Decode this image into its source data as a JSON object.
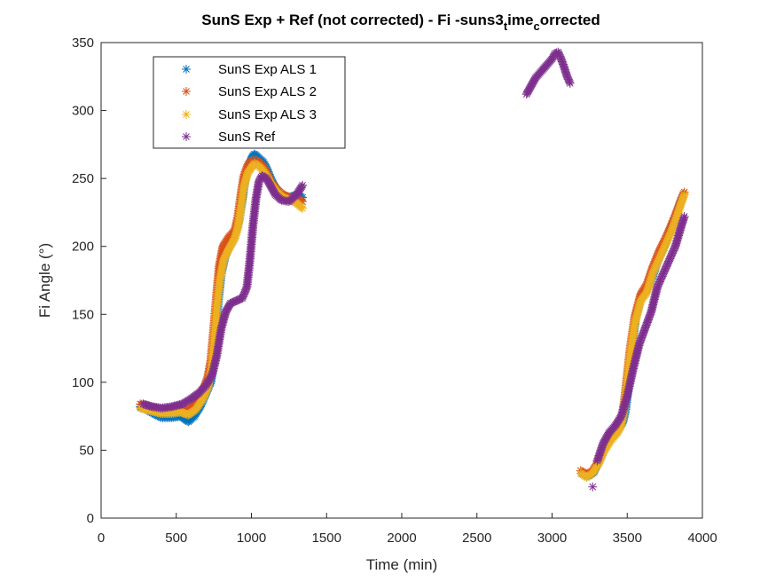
{
  "chart_data": {
    "type": "scatter",
    "title_parts": {
      "main": "SunS Exp + Ref  (not corrected) - Fi -suns3",
      "sub1": "t",
      "mid": "ime",
      "sub2": "c",
      "end": "orrected"
    },
    "xlabel": "Time (min)",
    "ylabel": "Fi Angle (°)",
    "xlim": [
      0,
      4000
    ],
    "ylim": [
      0,
      350
    ],
    "xticks": [
      0,
      500,
      1000,
      1500,
      2000,
      2500,
      3000,
      3500,
      4000
    ],
    "yticks": [
      0,
      50,
      100,
      150,
      200,
      250,
      300,
      350
    ],
    "xtick_labels": [
      "0",
      "500",
      "1000",
      "1500",
      "2000",
      "2500",
      "3000",
      "3500",
      "4000"
    ],
    "ytick_labels": [
      "0",
      "50",
      "100",
      "150",
      "200",
      "250",
      "300",
      "350"
    ],
    "grid": false,
    "legend_position": "top-left",
    "marker": "asterisk",
    "series": [
      {
        "name": "SunS Exp ALS 1",
        "color": "#0072BD",
        "segments": [
          [
            [
              260,
              82
            ],
            [
              330,
              78
            ],
            [
              400,
              74
            ],
            [
              470,
              74
            ],
            [
              530,
              75
            ],
            [
              580,
              71
            ],
            [
              620,
              75
            ],
            [
              660,
              82
            ],
            [
              700,
              92
            ],
            [
              730,
              100
            ],
            [
              745,
              110
            ],
            [
              760,
              130
            ],
            [
              780,
              160
            ],
            [
              800,
              180
            ],
            [
              830,
              195
            ],
            [
              870,
              205
            ],
            [
              900,
              212
            ],
            [
              920,
              220
            ],
            [
              940,
              235
            ],
            [
              960,
              250
            ],
            [
              980,
              258
            ],
            [
              1000,
              265
            ],
            [
              1020,
              268
            ],
            [
              1040,
              266
            ],
            [
              1060,
              264
            ],
            [
              1080,
              262
            ],
            [
              1100,
              258
            ],
            [
              1130,
              250
            ],
            [
              1160,
              243
            ],
            [
              1200,
              238
            ],
            [
              1250,
              236
            ],
            [
              1300,
              238
            ],
            [
              1340,
              236
            ]
          ],
          [
            [
              3200,
              33
            ],
            [
              3240,
              31
            ],
            [
              3280,
              34
            ],
            [
              3320,
              45
            ],
            [
              3360,
              55
            ],
            [
              3400,
              62
            ],
            [
              3440,
              66
            ],
            [
              3470,
              70
            ],
            [
              3490,
              80
            ],
            [
              3510,
              100
            ],
            [
              3530,
              125
            ],
            [
              3560,
              150
            ],
            [
              3600,
              165
            ],
            [
              3640,
              170
            ],
            [
              3670,
              178
            ],
            [
              3700,
              188
            ],
            [
              3740,
              198
            ],
            [
              3780,
              210
            ],
            [
              3820,
              222
            ],
            [
              3850,
              232
            ],
            [
              3870,
              238
            ]
          ]
        ]
      },
      {
        "name": "SunS Exp ALS 2",
        "color": "#D95319",
        "segments": [
          [
            [
              260,
              84
            ],
            [
              330,
              82
            ],
            [
              400,
              80
            ],
            [
              470,
              80
            ],
            [
              530,
              81
            ],
            [
              580,
              80
            ],
            [
              630,
              86
            ],
            [
              680,
              95
            ],
            [
              710,
              104
            ],
            [
              730,
              116
            ],
            [
              750,
              140
            ],
            [
              765,
              160
            ],
            [
              785,
              185
            ],
            [
              810,
              200
            ],
            [
              850,
              207
            ],
            [
              890,
              212
            ],
            [
              910,
              222
            ],
            [
              930,
              238
            ],
            [
              950,
              252
            ],
            [
              975,
              260
            ],
            [
              1000,
              263
            ],
            [
              1020,
              264
            ],
            [
              1040,
              263
            ],
            [
              1070,
              260
            ],
            [
              1100,
              255
            ],
            [
              1130,
              248
            ],
            [
              1170,
              242
            ],
            [
              1210,
              238
            ],
            [
              1260,
              236
            ],
            [
              1300,
              236
            ],
            [
              1340,
              233
            ]
          ],
          [
            [
              3190,
              35
            ],
            [
              3230,
              32
            ],
            [
              3270,
              35
            ],
            [
              3310,
              42
            ],
            [
              3350,
              52
            ],
            [
              3390,
              60
            ],
            [
              3430,
              65
            ],
            [
              3460,
              72
            ],
            [
              3480,
              85
            ],
            [
              3500,
              105
            ],
            [
              3520,
              125
            ],
            [
              3550,
              148
            ],
            [
              3590,
              165
            ],
            [
              3630,
              172
            ],
            [
              3670,
              185
            ],
            [
              3710,
              196
            ],
            [
              3750,
              205
            ],
            [
              3790,
              215
            ],
            [
              3830,
              226
            ],
            [
              3860,
              235
            ],
            [
              3880,
              240
            ]
          ]
        ]
      },
      {
        "name": "SunS Exp ALS 3",
        "color": "#EDB120",
        "segments": [
          [
            [
              260,
              81
            ],
            [
              330,
              79
            ],
            [
              400,
              77
            ],
            [
              470,
              77
            ],
            [
              530,
              78
            ],
            [
              580,
              76
            ],
            [
              630,
              80
            ],
            [
              680,
              88
            ],
            [
              710,
              96
            ],
            [
              735,
              110
            ],
            [
              755,
              135
            ],
            [
              770,
              155
            ],
            [
              790,
              175
            ],
            [
              815,
              190
            ],
            [
              850,
              198
            ],
            [
              890,
              206
            ],
            [
              910,
              214
            ],
            [
              930,
              228
            ],
            [
              950,
              244
            ],
            [
              975,
              254
            ],
            [
              1000,
              258
            ],
            [
              1020,
              261
            ],
            [
              1040,
              260
            ],
            [
              1070,
              257
            ],
            [
              1100,
              252
            ],
            [
              1130,
              246
            ],
            [
              1170,
              240
            ],
            [
              1210,
              236
            ],
            [
              1260,
              234
            ],
            [
              1300,
              232
            ],
            [
              1340,
              228
            ]
          ],
          [
            [
              3190,
              33
            ],
            [
              3230,
              30
            ],
            [
              3270,
              33
            ],
            [
              3310,
              40
            ],
            [
              3350,
              50
            ],
            [
              3390,
              57
            ],
            [
              3430,
              62
            ],
            [
              3460,
              68
            ],
            [
              3480,
              80
            ],
            [
              3500,
              100
            ],
            [
              3520,
              120
            ],
            [
              3550,
              143
            ],
            [
              3590,
              160
            ],
            [
              3630,
              166
            ],
            [
              3670,
              180
            ],
            [
              3710,
              190
            ],
            [
              3750,
              200
            ],
            [
              3790,
              210
            ],
            [
              3830,
              222
            ],
            [
              3860,
              232
            ],
            [
              3880,
              238
            ]
          ]
        ]
      },
      {
        "name": "SunS Ref",
        "color": "#7E2F8E",
        "segments": [
          [
            [
              280,
              84
            ],
            [
              340,
              82
            ],
            [
              400,
              81
            ],
            [
              470,
              82
            ],
            [
              540,
              84
            ],
            [
              600,
              88
            ],
            [
              650,
              92
            ],
            [
              700,
              98
            ],
            [
              740,
              106
            ],
            [
              770,
              120
            ],
            [
              800,
              140
            ],
            [
              830,
              152
            ],
            [
              860,
              158
            ],
            [
              900,
              160
            ],
            [
              940,
              162
            ],
            [
              970,
              170
            ],
            [
              990,
              190
            ],
            [
              1010,
              215
            ],
            [
              1030,
              235
            ],
            [
              1050,
              248
            ],
            [
              1070,
              252
            ],
            [
              1100,
              250
            ],
            [
              1130,
              244
            ],
            [
              1160,
              238
            ],
            [
              1200,
              234
            ],
            [
              1250,
              233
            ],
            [
              1300,
              238
            ],
            [
              1340,
              245
            ]
          ],
          [
            [
              2830,
              312
            ],
            [
              2860,
              318
            ],
            [
              2890,
              324
            ],
            [
              3000,
              338
            ],
            [
              3020,
              342
            ],
            [
              3040,
              343
            ],
            [
              3060,
              338
            ],
            [
              3080,
              332
            ],
            [
              3100,
              325
            ],
            [
              3120,
              320
            ]
          ],
          [
            [
              3270,
              23
            ]
          ],
          [
            [
              3300,
              42
            ],
            [
              3340,
              55
            ],
            [
              3380,
              63
            ],
            [
              3420,
              68
            ],
            [
              3460,
              75
            ],
            [
              3500,
              90
            ],
            [
              3540,
              110
            ],
            [
              3580,
              128
            ],
            [
              3620,
              140
            ],
            [
              3660,
              152
            ],
            [
              3700,
              170
            ],
            [
              3740,
              180
            ],
            [
              3780,
              190
            ],
            [
              3820,
              200
            ],
            [
              3860,
              215
            ],
            [
              3880,
              222
            ]
          ]
        ]
      }
    ]
  }
}
